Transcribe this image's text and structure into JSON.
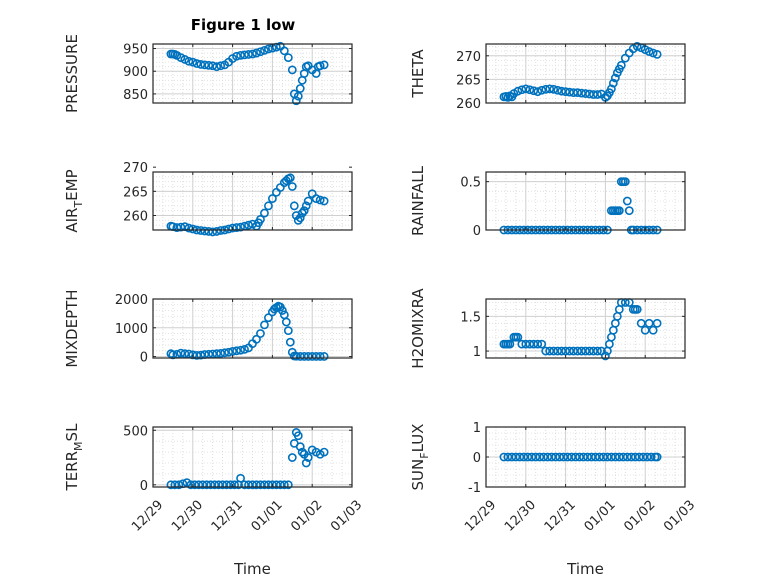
{
  "figure": {
    "title": "Figure 1 low"
  },
  "marker_color": "#0072BD",
  "grid": true,
  "x_ticks": [
    "12/29",
    "12/30",
    "12/31",
    "01/01",
    "01/02",
    "01/03"
  ],
  "x_label": "Time",
  "chart_data": [
    {
      "type": "scatter",
      "title": "Figure 1 low",
      "ylabel": "PRESSURE",
      "ylim": [
        830,
        960
      ],
      "yticks": [
        850,
        900,
        950
      ],
      "xlim": [
        0,
        5
      ],
      "show_xticks": false,
      "x": [
        0.45,
        0.5,
        0.55,
        0.6,
        0.7,
        0.8,
        0.9,
        1.0,
        1.1,
        1.2,
        1.3,
        1.4,
        1.5,
        1.6,
        1.7,
        1.8,
        1.9,
        2.0,
        2.1,
        2.2,
        2.3,
        2.4,
        2.5,
        2.6,
        2.7,
        2.8,
        2.9,
        3.0,
        3.1,
        3.2,
        3.3,
        3.4,
        3.5,
        3.55,
        3.6,
        3.65,
        3.7,
        3.75,
        3.8,
        3.85,
        3.9,
        4.0,
        4.1,
        4.15,
        4.2,
        4.3
      ],
      "values": [
        938,
        938,
        937,
        935,
        930,
        926,
        922,
        920,
        917,
        915,
        914,
        913,
        912,
        910,
        912,
        914,
        920,
        928,
        933,
        935,
        936,
        937,
        938,
        940,
        943,
        946,
        949,
        951,
        953,
        955,
        945,
        930,
        903,
        850,
        835,
        845,
        862,
        880,
        895,
        910,
        912,
        903,
        895,
        910,
        912,
        914
      ]
    },
    {
      "type": "scatter",
      "title": "",
      "ylabel": "THETA",
      "ylim": [
        260,
        272.5
      ],
      "yticks": [
        260,
        265,
        270
      ],
      "xlim": [
        0,
        5
      ],
      "show_xticks": false,
      "x": [
        0.45,
        0.5,
        0.55,
        0.6,
        0.65,
        0.7,
        0.8,
        0.9,
        1.0,
        1.1,
        1.2,
        1.3,
        1.4,
        1.5,
        1.6,
        1.7,
        1.8,
        1.9,
        2.0,
        2.1,
        2.2,
        2.3,
        2.4,
        2.5,
        2.6,
        2.7,
        2.8,
        2.9,
        3.0,
        3.05,
        3.1,
        3.15,
        3.2,
        3.25,
        3.3,
        3.35,
        3.4,
        3.5,
        3.6,
        3.7,
        3.8,
        3.9,
        4.0,
        4.1,
        4.2,
        4.3
      ],
      "values": [
        261.3,
        261.4,
        261.2,
        261.5,
        261.3,
        262,
        262.5,
        262.8,
        263,
        262.8,
        262.6,
        262.4,
        262.7,
        262.9,
        263,
        262.9,
        262.7,
        262.5,
        262.4,
        262.3,
        262.2,
        262.2,
        262.1,
        262,
        261.9,
        261.8,
        261.8,
        261.9,
        261.2,
        261.5,
        262.2,
        263,
        264.2,
        265.3,
        266.4,
        267.2,
        268,
        269.5,
        270.6,
        271.5,
        272,
        271.7,
        271.3,
        270.9,
        270.6,
        270.3
      ]
    },
    {
      "type": "scatter",
      "title": "",
      "ylabel": "AIR_TEMP",
      "ylim": [
        257,
        269
      ],
      "yticks": [
        260,
        265,
        270
      ],
      "xlim": [
        0,
        5
      ],
      "show_xticks": false,
      "x": [
        0.45,
        0.5,
        0.6,
        0.7,
        0.8,
        0.9,
        1.0,
        1.1,
        1.2,
        1.3,
        1.4,
        1.5,
        1.6,
        1.7,
        1.8,
        1.9,
        2.0,
        2.1,
        2.2,
        2.3,
        2.4,
        2.5,
        2.6,
        2.65,
        2.7,
        2.8,
        2.9,
        3.0,
        3.1,
        3.2,
        3.3,
        3.35,
        3.4,
        3.45,
        3.5,
        3.55,
        3.6,
        3.65,
        3.7,
        3.75,
        3.8,
        3.85,
        3.9,
        4.0,
        4.1,
        4.2,
        4.3
      ],
      "values": [
        257.8,
        257.7,
        257.5,
        257.6,
        257.7,
        257.4,
        257.2,
        257.0,
        256.9,
        256.8,
        256.7,
        256.6,
        256.7,
        256.9,
        257.0,
        257.2,
        257.4,
        257.5,
        257.6,
        257.8,
        258.0,
        258.2,
        257.8,
        258.5,
        259.2,
        260.5,
        262.0,
        263.5,
        264.8,
        265.8,
        266.8,
        267.2,
        267.6,
        267.8,
        266,
        262,
        260,
        259,
        259.5,
        260.5,
        261,
        262,
        263,
        264.5,
        263.5,
        263.2,
        263
      ]
    },
    {
      "type": "scatter",
      "title": "",
      "ylabel": "RAINFALL",
      "ylim": [
        0,
        0.6
      ],
      "yticks": [
        0,
        0.5
      ],
      "xlim": [
        0,
        5
      ],
      "show_xticks": false,
      "x": [
        0.45,
        0.55,
        0.65,
        0.75,
        0.85,
        0.95,
        1.05,
        1.15,
        1.25,
        1.35,
        1.45,
        1.55,
        1.65,
        1.75,
        1.85,
        1.95,
        2.05,
        2.15,
        2.25,
        2.35,
        2.45,
        2.55,
        2.65,
        2.75,
        2.85,
        2.95,
        3.05,
        3.15,
        3.2,
        3.25,
        3.3,
        3.35,
        3.4,
        3.45,
        3.5,
        3.55,
        3.6,
        3.65,
        3.7,
        3.8,
        3.9,
        4.0,
        4.1,
        4.2,
        4.3
      ],
      "values": [
        0,
        0,
        0,
        0,
        0,
        0,
        0,
        0,
        0,
        0,
        0,
        0,
        0,
        0,
        0,
        0,
        0,
        0,
        0,
        0,
        0,
        0,
        0,
        0,
        0,
        0,
        0,
        0.2,
        0.2,
        0.2,
        0.2,
        0.2,
        0.5,
        0.5,
        0.5,
        0.3,
        0.2,
        0,
        0,
        0,
        0,
        0,
        0,
        0,
        0
      ]
    },
    {
      "type": "scatter",
      "title": "",
      "ylabel": "MIXDEPTH",
      "ylim": [
        -50,
        2000
      ],
      "yticks": [
        0,
        1000,
        2000
      ],
      "xlim": [
        0,
        5
      ],
      "show_xticks": false,
      "x": [
        0.45,
        0.5,
        0.6,
        0.7,
        0.8,
        0.9,
        1.0,
        1.1,
        1.2,
        1.3,
        1.4,
        1.5,
        1.6,
        1.7,
        1.8,
        1.9,
        2.0,
        2.1,
        2.2,
        2.3,
        2.4,
        2.5,
        2.6,
        2.7,
        2.8,
        2.9,
        3.0,
        3.05,
        3.1,
        3.15,
        3.2,
        3.25,
        3.3,
        3.35,
        3.4,
        3.45,
        3.5,
        3.55,
        3.6,
        3.7,
        3.8,
        3.9,
        4.0,
        4.1,
        4.2,
        4.3
      ],
      "values": [
        100,
        60,
        80,
        120,
        100,
        90,
        60,
        40,
        50,
        70,
        80,
        90,
        100,
        110,
        130,
        150,
        180,
        200,
        220,
        250,
        300,
        450,
        600,
        800,
        1100,
        1350,
        1550,
        1650,
        1700,
        1750,
        1720,
        1600,
        1450,
        1200,
        900,
        500,
        150,
        20,
        10,
        5,
        5,
        5,
        5,
        5,
        5,
        5
      ]
    },
    {
      "type": "scatter",
      "title": "",
      "ylabel": "H2OMIXRA",
      "ylim": [
        0.9,
        1.75
      ],
      "yticks": [
        1,
        1.5
      ],
      "xlim": [
        0,
        5
      ],
      "show_xticks": false,
      "x": [
        0.45,
        0.5,
        0.55,
        0.6,
        0.7,
        0.75,
        0.8,
        0.9,
        1.0,
        1.1,
        1.2,
        1.3,
        1.4,
        1.5,
        1.6,
        1.7,
        1.8,
        1.9,
        2.0,
        2.1,
        2.2,
        2.3,
        2.4,
        2.5,
        2.6,
        2.7,
        2.8,
        2.9,
        3.0,
        3.05,
        3.1,
        3.15,
        3.2,
        3.25,
        3.3,
        3.35,
        3.4,
        3.5,
        3.6,
        3.7,
        3.75,
        3.8,
        3.9,
        4.0,
        4.1,
        4.2,
        4.3
      ],
      "values": [
        1.1,
        1.1,
        1.1,
        1.1,
        1.2,
        1.2,
        1.2,
        1.1,
        1.1,
        1.1,
        1.1,
        1.1,
        1.1,
        1.0,
        1.0,
        1.0,
        1.0,
        1.0,
        1.0,
        1.0,
        1.0,
        1.0,
        1.0,
        1.0,
        1.0,
        1.0,
        1.0,
        1.0,
        0.93,
        1.0,
        1.1,
        1.2,
        1.3,
        1.4,
        1.5,
        1.6,
        1.7,
        1.7,
        1.7,
        1.6,
        1.6,
        1.6,
        1.4,
        1.3,
        1.4,
        1.3,
        1.4
      ]
    },
    {
      "type": "scatter",
      "title": "",
      "ylabel": "TERR_MSL",
      "ylim": [
        -20,
        530
      ],
      "yticks": [
        0,
        500
      ],
      "xlim": [
        0,
        5
      ],
      "show_xticks": true,
      "x": [
        0.45,
        0.55,
        0.65,
        0.75,
        0.85,
        0.95,
        1.05,
        1.15,
        1.25,
        1.35,
        1.45,
        1.55,
        1.65,
        1.75,
        1.85,
        1.95,
        2.05,
        2.15,
        2.2,
        2.3,
        2.4,
        2.5,
        2.6,
        2.7,
        2.8,
        2.9,
        3.0,
        3.1,
        3.2,
        3.3,
        3.4,
        3.5,
        3.55,
        3.6,
        3.65,
        3.7,
        3.75,
        3.8,
        3.85,
        3.9,
        4.0,
        4.1,
        4.2,
        4.3
      ],
      "values": [
        0,
        0,
        0,
        10,
        20,
        0,
        0,
        0,
        0,
        0,
        0,
        0,
        0,
        0,
        0,
        0,
        0,
        0,
        60,
        0,
        0,
        0,
        0,
        0,
        0,
        0,
        0,
        0,
        0,
        0,
        0,
        250,
        380,
        480,
        450,
        350,
        300,
        280,
        200,
        250,
        320,
        300,
        280,
        300
      ]
    },
    {
      "type": "scatter",
      "title": "",
      "ylabel": "SUN_FLUX",
      "ylim": [
        -1,
        1
      ],
      "yticks": [
        -1,
        0,
        1
      ],
      "xlim": [
        0,
        5
      ],
      "show_xticks": true,
      "x": [
        0.45,
        0.55,
        0.65,
        0.75,
        0.85,
        0.95,
        1.05,
        1.15,
        1.25,
        1.35,
        1.45,
        1.55,
        1.65,
        1.75,
        1.85,
        1.95,
        2.05,
        2.15,
        2.25,
        2.35,
        2.45,
        2.55,
        2.65,
        2.75,
        2.85,
        2.95,
        3.05,
        3.15,
        3.25,
        3.35,
        3.45,
        3.55,
        3.65,
        3.75,
        3.85,
        3.95,
        4.05,
        4.15,
        4.25,
        4.3
      ],
      "values": [
        0,
        0,
        0,
        0,
        0,
        0,
        0,
        0,
        0,
        0,
        0,
        0,
        0,
        0,
        0,
        0,
        0,
        0,
        0,
        0,
        0,
        0,
        0,
        0,
        0,
        0,
        0,
        0,
        0,
        0,
        0,
        0,
        0,
        0,
        0,
        0,
        0,
        0,
        0,
        0
      ]
    }
  ]
}
